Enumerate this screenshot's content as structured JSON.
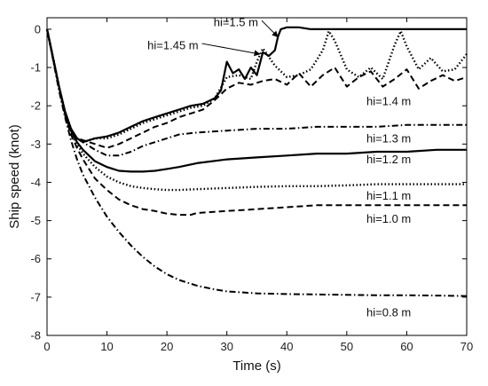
{
  "chart_data": {
    "type": "line",
    "xlabel": "Time (s)",
    "ylabel": "Ship speed (knot)",
    "xlim": [
      0,
      70
    ],
    "ylim": [
      -8,
      0.3
    ],
    "xticks": [
      0,
      10,
      20,
      30,
      40,
      50,
      60,
      70
    ],
    "yticks": [
      0,
      -1,
      -2,
      -3,
      -4,
      -5,
      -6,
      -7,
      -8
    ],
    "grid": false,
    "series": [
      {
        "name": "hi=1.5 m",
        "style": "solid",
        "x": [
          0,
          1,
          2,
          3,
          4,
          5,
          6,
          7,
          8,
          10,
          12,
          14,
          16,
          18,
          20,
          22,
          24,
          26,
          28,
          29,
          30,
          31,
          32,
          33,
          34,
          35,
          36,
          37,
          38,
          38.5,
          39,
          40,
          42,
          44,
          46,
          50,
          55,
          60,
          65,
          70
        ],
        "y": [
          0,
          -0.75,
          -1.5,
          -2.15,
          -2.6,
          -2.85,
          -2.95,
          -2.9,
          -2.85,
          -2.8,
          -2.7,
          -2.55,
          -2.4,
          -2.3,
          -2.2,
          -2.1,
          -2.0,
          -1.95,
          -1.8,
          -1.6,
          -0.85,
          -1.15,
          -1.05,
          -1.3,
          -1.0,
          -1.2,
          -0.6,
          -0.7,
          -0.55,
          -0.2,
          0.0,
          0.05,
          0.05,
          0.0,
          0.0,
          0.0,
          0.0,
          0.0,
          0.0,
          0.0
        ]
      },
      {
        "name": "hi=1.45 m",
        "style": "dotted",
        "x": [
          0,
          1,
          2,
          3,
          4,
          5,
          6,
          7,
          8,
          10,
          12,
          14,
          16,
          18,
          20,
          22,
          24,
          26,
          28,
          30,
          32,
          34,
          35,
          36,
          38,
          40,
          42,
          44,
          46,
          47,
          48,
          50,
          52,
          54,
          56,
          58,
          59,
          60,
          62,
          64,
          66,
          68,
          70
        ],
        "y": [
          0,
          -0.75,
          -1.5,
          -2.15,
          -2.6,
          -2.85,
          -2.95,
          -2.9,
          -2.85,
          -2.85,
          -2.75,
          -2.6,
          -2.45,
          -2.35,
          -2.25,
          -2.15,
          -2.05,
          -2.0,
          -1.8,
          -1.25,
          -1.2,
          -1.3,
          -0.85,
          -0.5,
          -0.95,
          -1.25,
          -1.2,
          -1.05,
          -0.55,
          -0.05,
          -0.3,
          -1.05,
          -1.25,
          -1.0,
          -1.3,
          -0.4,
          -0.05,
          -0.45,
          -1.05,
          -0.75,
          -1.1,
          -1.05,
          -0.65
        ]
      },
      {
        "name": "hi=1.4 m",
        "style": "dashed",
        "x": [
          0,
          1,
          2,
          3,
          4,
          5,
          6,
          8,
          10,
          12,
          14,
          16,
          18,
          20,
          22,
          24,
          26,
          28,
          30,
          32,
          34,
          36,
          38,
          40,
          42,
          44,
          46,
          48,
          50,
          52,
          54,
          56,
          58,
          60,
          62,
          64,
          66,
          68,
          70
        ],
        "y": [
          0,
          -0.75,
          -1.5,
          -2.15,
          -2.6,
          -2.85,
          -2.9,
          -3.0,
          -3.1,
          -3.0,
          -2.85,
          -2.7,
          -2.55,
          -2.45,
          -2.3,
          -2.2,
          -2.1,
          -1.85,
          -1.55,
          -1.4,
          -1.45,
          -1.35,
          -1.3,
          -1.45,
          -1.15,
          -1.5,
          -1.2,
          -1.0,
          -1.5,
          -1.25,
          -1.1,
          -1.5,
          -1.3,
          -1.05,
          -1.55,
          -1.35,
          -1.2,
          -1.35,
          -1.25
        ]
      },
      {
        "name": "hi=1.3 m",
        "style": "dashdot",
        "x": [
          0,
          1,
          2,
          3,
          4,
          5,
          6,
          7,
          8,
          10,
          12,
          14,
          16,
          18,
          20,
          22,
          25,
          30,
          35,
          40,
          45,
          50,
          55,
          60,
          65,
          70
        ],
        "y": [
          0,
          -0.75,
          -1.5,
          -2.15,
          -2.6,
          -2.85,
          -2.95,
          -3.05,
          -3.15,
          -3.3,
          -3.3,
          -3.2,
          -3.05,
          -2.95,
          -2.85,
          -2.75,
          -2.7,
          -2.65,
          -2.6,
          -2.6,
          -2.55,
          -2.55,
          -2.55,
          -2.5,
          -2.5,
          -2.5
        ]
      },
      {
        "name": "hi=1.2 m",
        "style": "solid",
        "x": [
          0,
          1,
          2,
          3,
          4,
          5,
          6,
          7,
          8,
          10,
          12,
          14,
          16,
          18,
          20,
          22,
          25,
          30,
          35,
          40,
          45,
          50,
          55,
          60,
          65,
          70
        ],
        "y": [
          0,
          -0.75,
          -1.5,
          -2.2,
          -2.65,
          -2.95,
          -3.15,
          -3.3,
          -3.45,
          -3.6,
          -3.7,
          -3.72,
          -3.72,
          -3.7,
          -3.65,
          -3.6,
          -3.5,
          -3.4,
          -3.35,
          -3.3,
          -3.25,
          -3.25,
          -3.2,
          -3.2,
          -3.15,
          -3.15
        ]
      },
      {
        "name": "hi=1.1 m",
        "style": "dotted",
        "x": [
          0,
          1,
          2,
          3,
          4,
          5,
          6,
          8,
          10,
          12,
          14,
          16,
          18,
          20,
          22,
          25,
          30,
          35,
          40,
          45,
          50,
          55,
          60,
          65,
          70
        ],
        "y": [
          0,
          -0.75,
          -1.5,
          -2.2,
          -2.7,
          -3.0,
          -3.25,
          -3.6,
          -3.85,
          -4.0,
          -4.1,
          -4.15,
          -4.18,
          -4.2,
          -4.2,
          -4.18,
          -4.15,
          -4.12,
          -4.1,
          -4.1,
          -4.08,
          -4.05,
          -4.05,
          -4.05,
          -4.05
        ]
      },
      {
        "name": "hi=1.0 m",
        "style": "dashed",
        "x": [
          0,
          1,
          2,
          3,
          4,
          5,
          6,
          8,
          10,
          12,
          14,
          16,
          18,
          20,
          22,
          24,
          25,
          30,
          35,
          40,
          45,
          50,
          55,
          60,
          65,
          70
        ],
        "y": [
          0,
          -0.75,
          -1.5,
          -2.25,
          -2.75,
          -3.1,
          -3.4,
          -3.9,
          -4.2,
          -4.45,
          -4.6,
          -4.7,
          -4.75,
          -4.82,
          -4.85,
          -4.85,
          -4.8,
          -4.75,
          -4.7,
          -4.65,
          -4.6,
          -4.6,
          -4.6,
          -4.6,
          -4.6,
          -4.6
        ]
      },
      {
        "name": "hi=0.8 m",
        "style": "dashdot",
        "x": [
          0,
          1,
          2,
          3,
          4,
          5,
          6,
          8,
          10,
          12,
          14,
          16,
          18,
          20,
          22,
          25,
          28,
          30,
          35,
          40,
          45,
          50,
          55,
          60,
          65,
          70
        ],
        "y": [
          0,
          -0.8,
          -1.6,
          -2.3,
          -2.9,
          -3.4,
          -3.8,
          -4.4,
          -4.9,
          -5.3,
          -5.65,
          -5.95,
          -6.2,
          -6.4,
          -6.55,
          -6.7,
          -6.8,
          -6.85,
          -6.9,
          -6.92,
          -6.93,
          -6.94,
          -6.95,
          -6.95,
          -6.96,
          -6.97
        ]
      }
    ],
    "annotations": [
      {
        "text": "hi=1.5 m",
        "x": 31.5,
        "y": 0.18,
        "arrow_to": [
          38.5,
          -0.2
        ]
      },
      {
        "text": "hi=1.45 m",
        "x": 21,
        "y": -0.42,
        "arrow_to": [
          35.5,
          -0.65
        ]
      },
      {
        "text": "hi=1.4 m",
        "x": 57,
        "y": -1.88
      },
      {
        "text": "hi=1.3 m",
        "x": 57,
        "y": -2.85
      },
      {
        "text": "hi=1.2 m",
        "x": 57,
        "y": -3.4
      },
      {
        "text": "hi=1.1 m",
        "x": 57,
        "y": -4.35
      },
      {
        "text": "hi=1.0 m",
        "x": 57,
        "y": -4.95
      },
      {
        "text": "hi=0.8 m",
        "x": 57,
        "y": -7.4
      }
    ]
  }
}
